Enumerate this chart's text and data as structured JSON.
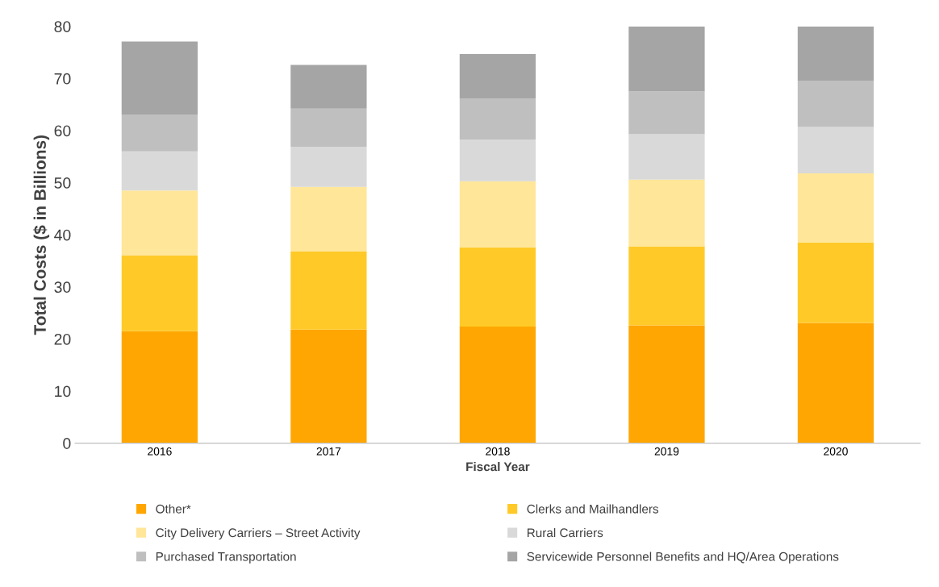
{
  "chart_data": {
    "type": "bar",
    "stacked": true,
    "xlabel": "Fiscal Year",
    "ylabel": "Total Costs ($ in Billions)",
    "categories": [
      "2016",
      "2017",
      "2018",
      "2019",
      "2020"
    ],
    "series": [
      {
        "name": "Other*",
        "color": "#ffa602",
        "values": [
          21.5,
          21.8,
          22.4,
          22.6,
          23.1
        ]
      },
      {
        "name": "Clerks and Mailhandlers",
        "color": "#ffca28",
        "values": [
          14.5,
          15.0,
          15.2,
          15.2,
          15.4
        ]
      },
      {
        "name": "City Delivery Carriers – Street Activity",
        "color": "#ffe699",
        "values": [
          12.5,
          12.4,
          12.7,
          12.8,
          13.3
        ]
      },
      {
        "name": "Rural Carriers",
        "color": "#d9d9d9",
        "values": [
          7.5,
          7.7,
          8.0,
          8.7,
          8.9
        ]
      },
      {
        "name": "Purchased Transportation",
        "color": "#bfbfbf",
        "values": [
          7.1,
          7.3,
          7.8,
          8.2,
          8.9
        ]
      },
      {
        "name": "Servicewide Personnel Benefits and HQ/Area Operations",
        "color": "#a5a5a5",
        "values": [
          14.0,
          8.4,
          8.6,
          12.5,
          10.4
        ]
      }
    ],
    "ylim": [
      0,
      80
    ],
    "yticks": [
      0,
      10,
      20,
      30,
      40,
      50,
      60,
      70,
      80
    ],
    "grid": false,
    "legend": "bottom"
  }
}
